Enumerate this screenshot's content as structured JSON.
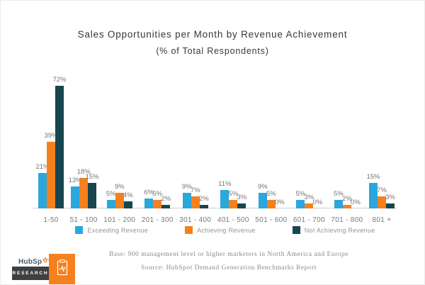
{
  "title": {
    "line1": "Sales Opportunities per Month by Revenue Achievement",
    "line2": "(% of Total Respondents)"
  },
  "chart_data": {
    "type": "bar",
    "categories": [
      "1-50",
      "51 - 100",
      "101 - 200",
      "201 - 300",
      "301 - 400",
      "401 - 500",
      "501 - 600",
      "601 - 700",
      "701 - 800",
      "801 +"
    ],
    "series": [
      {
        "name": "Exceeding Revenue",
        "color": "#2aa7dc",
        "values": [
          21,
          13,
          5,
          6,
          9,
          11,
          9,
          5,
          5,
          15
        ]
      },
      {
        "name": "Achieving Revenue",
        "color": "#f5801e",
        "values": [
          39,
          18,
          9,
          5,
          7,
          5,
          5,
          3,
          2,
          7
        ]
      },
      {
        "name": "Not Achieving Revenue",
        "color": "#18464f",
        "values": [
          72,
          15,
          4,
          2,
          2,
          3,
          0,
          0,
          0,
          3
        ]
      }
    ],
    "value_suffix": "%",
    "title": "Sales Opportunities per Month by Revenue Achievement",
    "subtitle": "(% of Total Respondents)",
    "xlabel": "",
    "ylabel": "",
    "ylim": [
      0,
      75
    ],
    "grid": false,
    "legend_position": "bottom",
    "data_labels": true
  },
  "footer": {
    "base": "Base: 900 management level or higher marketers in North America and Europe",
    "source": "Source: HubSpot Demand Generation Benchmarks Report"
  },
  "branding": {
    "logo_prefix": "HubSp",
    "logo_suffix": "t",
    "research_label": "RESEARCH"
  },
  "colors": {
    "exceeding": "#2aa7dc",
    "achieving": "#f5801e",
    "not_achieving": "#18464f",
    "axis_line": "#cfcfcf",
    "label_gray": "#757575"
  }
}
